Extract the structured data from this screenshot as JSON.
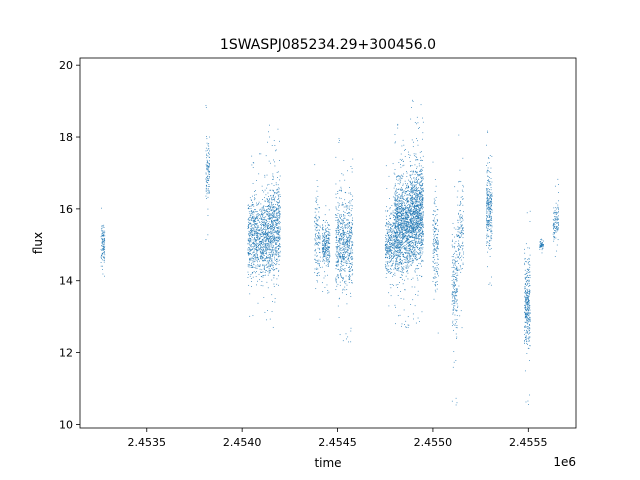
{
  "chart_data": {
    "type": "scatter",
    "title": "1SWASPJ085234.29+300456.0",
    "xlabel": "time",
    "ylabel": "flux",
    "x_offset_label": "1e6",
    "xlim": [
      2.45315,
      2.45575
    ],
    "ylim": [
      9.9,
      20.2
    ],
    "x_ticks": [
      2.4535,
      2.454,
      2.4545,
      2.455,
      2.4555
    ],
    "x_tick_labels": [
      "2.4535",
      "2.4540",
      "2.4545",
      "2.4550",
      "2.4555"
    ],
    "y_ticks": [
      10,
      12,
      14,
      16,
      18,
      20
    ],
    "y_tick_labels": [
      "10",
      "12",
      "14",
      "16",
      "18",
      "20"
    ],
    "grid": false,
    "marker_color": "#1f77b4",
    "series": [
      {
        "values": [
          {
            "x_range": [
              2.45326,
              2.45328
            ],
            "y_range": [
              13.8,
              16.2
            ],
            "weight": 0.4
          },
          {
            "x_range": [
              2.45381,
              2.45383
            ],
            "y_range": [
              15.1,
              19.1
            ],
            "weight": 0.4
          },
          {
            "x_range": [
              2.45403,
              2.45413
            ],
            "y_range": [
              12.8,
              17.6
            ],
            "weight": 3.0
          },
          {
            "x_range": [
              2.45413,
              2.4542
            ],
            "y_range": [
              12.5,
              18.4
            ],
            "weight": 2.6
          },
          {
            "x_range": [
              2.45438,
              2.45441
            ],
            "y_range": [
              12.8,
              17.5
            ],
            "weight": 0.5
          },
          {
            "x_range": [
              2.45442,
              2.45446
            ],
            "y_range": [
              13.6,
              16.4
            ],
            "weight": 0.9
          },
          {
            "x_range": [
              2.45449,
              2.45458
            ],
            "y_range": [
              12.2,
              18.0
            ],
            "weight": 2.4
          },
          {
            "x_range": [
              2.45475,
              2.4548
            ],
            "y_range": [
              12.8,
              17.4
            ],
            "weight": 1.2
          },
          {
            "x_range": [
              2.4548,
              2.45488
            ],
            "y_range": [
              12.6,
              18.4
            ],
            "weight": 4.2
          },
          {
            "x_range": [
              2.45488,
              2.45495
            ],
            "y_range": [
              12.6,
              19.1
            ],
            "weight": 4.0
          },
          {
            "x_range": [
              2.455,
              2.45503
            ],
            "y_range": [
              12.4,
              17.6
            ],
            "weight": 0.6
          },
          {
            "x_range": [
              2.4551,
              2.45513
            ],
            "y_range": [
              10.4,
              17.4
            ],
            "weight": 0.7
          },
          {
            "x_range": [
              2.45513,
              2.45516
            ],
            "y_range": [
              12.6,
              18.2
            ],
            "weight": 0.5
          },
          {
            "x_range": [
              2.45528,
              2.45531
            ],
            "y_range": [
              13.8,
              18.2
            ],
            "weight": 1.0
          },
          {
            "x_range": [
              2.45548,
              2.45551
            ],
            "y_range": [
              10.3,
              16.6
            ],
            "weight": 1.2
          },
          {
            "x_range": [
              2.45556,
              2.45558
            ],
            "y_range": [
              14.6,
              15.4
            ],
            "weight": 0.2
          },
          {
            "x_range": [
              2.45563,
              2.45566
            ],
            "y_range": [
              14.4,
              16.9
            ],
            "weight": 0.4
          }
        ]
      }
    ]
  }
}
